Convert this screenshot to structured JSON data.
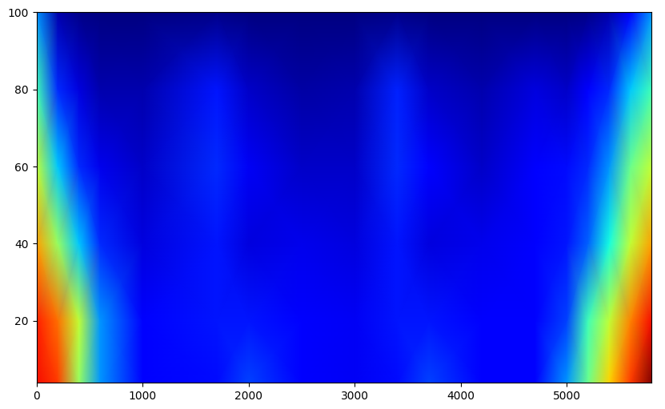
{
  "chart_data": {
    "type": "heatmap",
    "x": [
      0,
      200,
      400,
      600,
      1000,
      1700,
      2000,
      2500,
      3000,
      3400,
      3700,
      4200,
      4700,
      5000,
      5200,
      5400,
      5600,
      5800
    ],
    "y": [
      4,
      20,
      40,
      60,
      80,
      100
    ],
    "cells": [
      [
        0.9,
        0.85,
        0.55,
        0.3,
        0.15,
        0.17,
        0.22,
        0.15,
        0.14,
        0.17,
        0.22,
        0.15,
        0.15,
        0.3,
        0.5,
        0.7,
        0.85,
        1.0
      ],
      [
        0.88,
        0.8,
        0.6,
        0.3,
        0.15,
        0.18,
        0.18,
        0.15,
        0.14,
        0.18,
        0.18,
        0.15,
        0.15,
        0.22,
        0.45,
        0.6,
        0.78,
        0.9
      ],
      [
        0.75,
        0.55,
        0.35,
        0.2,
        0.12,
        0.18,
        0.12,
        0.13,
        0.12,
        0.18,
        0.12,
        0.13,
        0.15,
        0.18,
        0.25,
        0.4,
        0.6,
        0.75
      ],
      [
        0.6,
        0.35,
        0.2,
        0.13,
        0.1,
        0.2,
        0.14,
        0.1,
        0.1,
        0.2,
        0.15,
        0.1,
        0.15,
        0.17,
        0.2,
        0.3,
        0.5,
        0.6
      ],
      [
        0.45,
        0.2,
        0.12,
        0.08,
        0.08,
        0.18,
        0.1,
        0.07,
        0.08,
        0.19,
        0.1,
        0.08,
        0.12,
        0.1,
        0.15,
        0.2,
        0.35,
        0.45
      ],
      [
        0.3,
        0.08,
        0.05,
        0.04,
        0.04,
        0.05,
        0.04,
        0.04,
        0.04,
        0.05,
        0.04,
        0.04,
        0.04,
        0.04,
        0.05,
        0.08,
        0.15,
        0.3
      ]
    ],
    "xlim": [
      0,
      5800
    ],
    "ylim": [
      4,
      100
    ],
    "xticks": [
      0,
      1000,
      2000,
      3000,
      4000,
      5000
    ],
    "yticks": [
      20,
      40,
      60,
      80,
      100
    ]
  }
}
